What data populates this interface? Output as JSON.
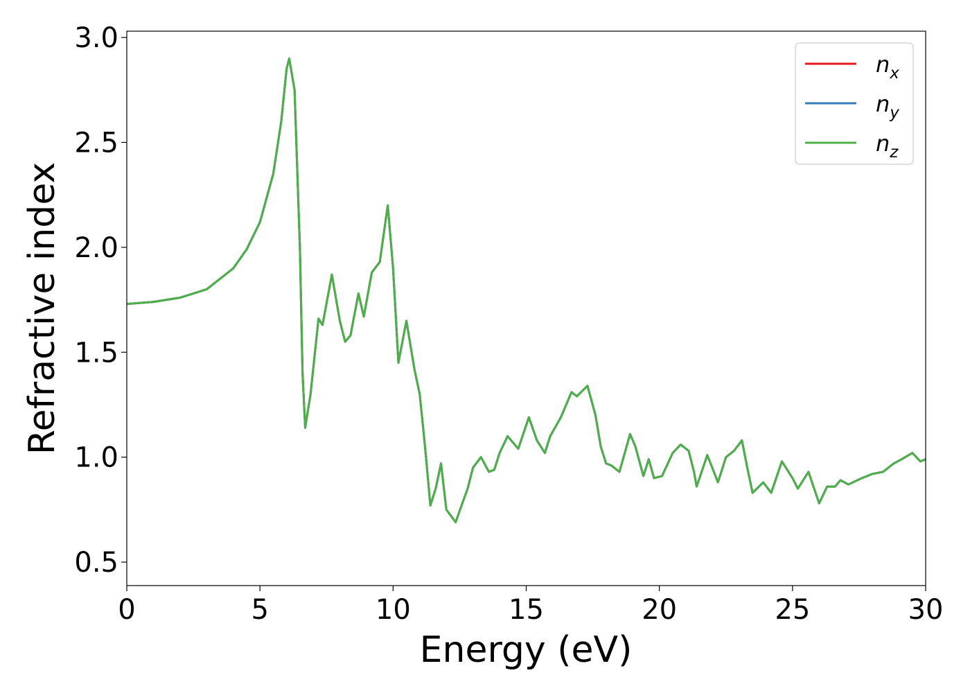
{
  "chart_data": {
    "type": "line",
    "xlabel": "Energy (eV)",
    "ylabel": "Refractive index",
    "xlim": [
      0,
      30
    ],
    "ylim": [
      0.388,
      3.03
    ],
    "xticks": [
      0,
      5,
      10,
      15,
      20,
      25,
      30
    ],
    "yticks": [
      0.5,
      {
        "value": 1.0,
        "label": "1.0"
      },
      1.5,
      {
        "value": 2.0,
        "label": "2.0"
      },
      2.5,
      {
        "value": 3.0,
        "label": "3.0"
      }
    ],
    "grid": false,
    "legend": "upper right",
    "x": [
      0,
      1,
      2,
      3,
      4,
      4.5,
      5,
      5.5,
      5.8,
      6.0,
      6.1,
      6.3,
      6.5,
      6.6,
      6.7,
      6.9,
      7.2,
      7.35,
      7.7,
      8.0,
      8.2,
      8.4,
      8.7,
      8.9,
      9.2,
      9.5,
      9.8,
      10.0,
      10.2,
      10.5,
      10.8,
      11.0,
      11.2,
      11.4,
      11.6,
      11.8,
      12.0,
      12.35,
      12.6,
      12.8,
      13.0,
      13.3,
      13.6,
      13.8,
      14.0,
      14.3,
      14.7,
      15.1,
      15.4,
      15.7,
      15.9,
      16.3,
      16.7,
      16.9,
      17.3,
      17.6,
      17.8,
      18.0,
      18.2,
      18.5,
      18.9,
      19.1,
      19.4,
      19.6,
      19.8,
      20.1,
      20.5,
      20.8,
      21.1,
      21.3,
      21.4,
      21.8,
      22.2,
      22.5,
      22.8,
      23.1,
      23.3,
      23.5,
      23.9,
      24.2,
      24.6,
      25.0,
      25.2,
      25.6,
      26.0,
      26.3,
      26.6,
      26.8,
      27.1,
      27.6,
      28.0,
      28.4,
      28.8,
      29.1,
      29.5,
      29.8,
      30
    ],
    "series": [
      {
        "name": "nx",
        "color": "#e41a1c",
        "values": [
          1.73,
          1.74,
          1.76,
          1.8,
          1.9,
          1.99,
          2.12,
          2.35,
          2.6,
          2.85,
          2.9,
          2.75,
          2.0,
          1.4,
          1.14,
          1.3,
          1.66,
          1.63,
          1.87,
          1.65,
          1.55,
          1.58,
          1.78,
          1.67,
          1.88,
          1.93,
          2.2,
          1.9,
          1.45,
          1.65,
          1.42,
          1.3,
          1.05,
          0.77,
          0.85,
          0.97,
          0.75,
          0.69,
          0.78,
          0.85,
          0.95,
          1.0,
          0.93,
          0.94,
          1.02,
          1.1,
          1.04,
          1.19,
          1.08,
          1.02,
          1.1,
          1.19,
          1.31,
          1.29,
          1.34,
          1.2,
          1.05,
          0.97,
          0.96,
          0.93,
          1.11,
          1.05,
          0.91,
          0.99,
          0.9,
          0.91,
          1.02,
          1.06,
          1.03,
          0.93,
          0.86,
          1.01,
          0.88,
          1.0,
          1.03,
          1.08,
          0.95,
          0.83,
          0.88,
          0.83,
          0.98,
          0.9,
          0.85,
          0.93,
          0.78,
          0.86,
          0.86,
          0.89,
          0.87,
          0.9,
          0.92,
          0.93,
          0.97,
          0.99,
          1.02,
          0.98,
          0.99
        ]
      },
      {
        "name": "ny",
        "color": "#377eb8",
        "values": [
          1.73,
          1.74,
          1.76,
          1.8,
          1.9,
          1.99,
          2.12,
          2.35,
          2.6,
          2.85,
          2.9,
          2.75,
          2.0,
          1.4,
          1.14,
          1.3,
          1.66,
          1.63,
          1.87,
          1.65,
          1.55,
          1.58,
          1.78,
          1.67,
          1.88,
          1.93,
          2.2,
          1.9,
          1.45,
          1.65,
          1.42,
          1.3,
          1.05,
          0.77,
          0.85,
          0.97,
          0.75,
          0.69,
          0.78,
          0.85,
          0.95,
          1.0,
          0.93,
          0.94,
          1.02,
          1.1,
          1.04,
          1.19,
          1.08,
          1.02,
          1.1,
          1.19,
          1.31,
          1.29,
          1.34,
          1.2,
          1.05,
          0.97,
          0.96,
          0.93,
          1.11,
          1.05,
          0.91,
          0.99,
          0.9,
          0.91,
          1.02,
          1.06,
          1.03,
          0.93,
          0.86,
          1.01,
          0.88,
          1.0,
          1.03,
          1.08,
          0.95,
          0.83,
          0.88,
          0.83,
          0.98,
          0.9,
          0.85,
          0.93,
          0.78,
          0.86,
          0.86,
          0.89,
          0.87,
          0.9,
          0.92,
          0.93,
          0.97,
          0.99,
          1.02,
          0.98,
          0.99
        ]
      },
      {
        "name": "nz",
        "color": "#4daf4a",
        "values": [
          1.73,
          1.74,
          1.76,
          1.8,
          1.9,
          1.99,
          2.12,
          2.35,
          2.6,
          2.85,
          2.9,
          2.75,
          2.0,
          1.4,
          1.14,
          1.3,
          1.66,
          1.63,
          1.87,
          1.65,
          1.55,
          1.58,
          1.78,
          1.67,
          1.88,
          1.93,
          2.2,
          1.9,
          1.45,
          1.65,
          1.42,
          1.3,
          1.05,
          0.77,
          0.85,
          0.97,
          0.75,
          0.69,
          0.78,
          0.85,
          0.95,
          1.0,
          0.93,
          0.94,
          1.02,
          1.1,
          1.04,
          1.19,
          1.08,
          1.02,
          1.1,
          1.19,
          1.31,
          1.29,
          1.34,
          1.2,
          1.05,
          0.97,
          0.96,
          0.93,
          1.11,
          1.05,
          0.91,
          0.99,
          0.9,
          0.91,
          1.02,
          1.06,
          1.03,
          0.93,
          0.86,
          1.01,
          0.88,
          1.0,
          1.03,
          1.08,
          0.95,
          0.83,
          0.88,
          0.83,
          0.98,
          0.9,
          0.85,
          0.93,
          0.78,
          0.86,
          0.86,
          0.89,
          0.87,
          0.9,
          0.92,
          0.93,
          0.97,
          0.99,
          1.02,
          0.98,
          0.99
        ]
      }
    ]
  }
}
